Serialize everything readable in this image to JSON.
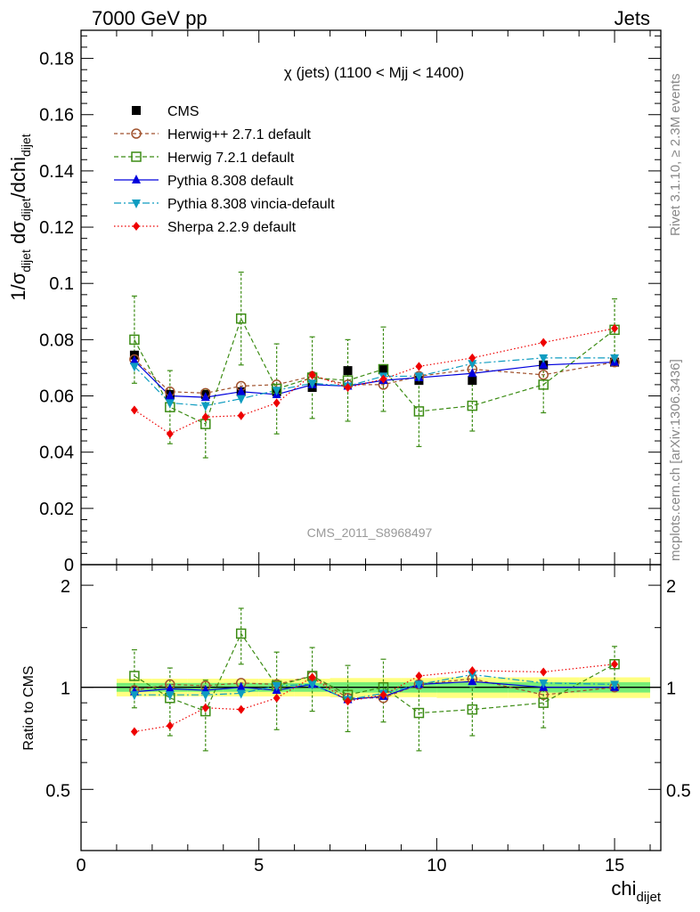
{
  "header": {
    "left": "7000 GeV pp",
    "right": "Jets"
  },
  "side_labels": {
    "rivet": "Rivet 3.1.10, ≥ 2.3M events",
    "mcplots": "mcplots.cern.ch [arXiv:1306.3436]"
  },
  "chart_data": {
    "type": "scatter",
    "title": "χ (jets) (1100 < Mjj < 1400)",
    "watermark": "CMS_2011_S8968497",
    "xlabel": "chi",
    "xlabel_sub": "dijet",
    "ylabel": "1/σdijet dσdijet/dchidijet",
    "ratio_ylabel": "Ratio to CMS",
    "xlim": [
      0,
      16.3
    ],
    "ylim": [
      0,
      0.19
    ],
    "ratio_ylim": [
      0.33,
      2.3
    ],
    "ratio_log_scale": true,
    "x_ticks": [
      "0",
      "5",
      "10",
      "15"
    ],
    "y_ticks": [
      "0",
      "0.02",
      "0.04",
      "0.06",
      "0.08",
      "0.1",
      "0.12",
      "0.14",
      "0.16",
      "0.18"
    ],
    "ratio_ticks": [
      "0.5",
      "1",
      "2"
    ],
    "bins": [
      [
        1,
        2
      ],
      [
        2,
        3
      ],
      [
        3,
        4
      ],
      [
        4,
        5
      ],
      [
        5,
        6
      ],
      [
        6,
        7
      ],
      [
        7,
        8
      ],
      [
        8,
        9
      ],
      [
        9,
        10
      ],
      [
        10,
        12
      ],
      [
        12,
        14
      ],
      [
        14,
        16
      ]
    ],
    "x": [
      1.5,
      2.5,
      3.5,
      4.5,
      5.5,
      6.5,
      7.5,
      8.5,
      9.5,
      11,
      13,
      15
    ],
    "data": {
      "name": "CMS",
      "values": [
        0.0745,
        0.0605,
        0.0605,
        0.0615,
        0.0615,
        0.063,
        0.069,
        0.0695,
        0.0655,
        0.0655,
        0.071,
        0.072
      ],
      "band_inner": [
        0.03,
        0.03,
        0.03,
        0.03,
        0.03,
        0.03,
        0.035,
        0.035,
        0.035,
        0.035,
        0.035,
        0.035
      ],
      "band_outer": [
        0.06,
        0.06,
        0.06,
        0.06,
        0.06,
        0.06,
        0.065,
        0.065,
        0.065,
        0.07,
        0.07,
        0.07
      ]
    },
    "series": [
      {
        "name": "Herwig++ 2.7.1 default",
        "color": "#a0522d",
        "marker": "open-circle",
        "dash": "4,3",
        "values": [
          0.073,
          0.0615,
          0.061,
          0.0635,
          0.064,
          0.067,
          0.064,
          0.064,
          0.067,
          0.0695,
          0.0675,
          0.072
        ],
        "errors": [
          0.001,
          0.001,
          0.001,
          0.001,
          0.001,
          0.001,
          0.001,
          0.001,
          0.001,
          0.001,
          0.001,
          0.001
        ]
      },
      {
        "name": "Herwig 7.2.1 default",
        "color": "#3c8c14",
        "marker": "open-square",
        "dash": "5,3",
        "values": [
          0.08,
          0.056,
          0.05,
          0.0875,
          0.0625,
          0.0665,
          0.0655,
          0.0695,
          0.0545,
          0.0565,
          0.064,
          0.0835
        ],
        "errors": [
          0.0155,
          0.013,
          0.012,
          0.0165,
          0.016,
          0.0145,
          0.0145,
          0.015,
          0.0125,
          0.009,
          0.01,
          0.011
        ]
      },
      {
        "name": "Pythia 8.308 default",
        "color": "#0000dd",
        "marker": "filled-triangle-up",
        "dash": "",
        "values": [
          0.0725,
          0.06,
          0.0595,
          0.0615,
          0.0605,
          0.064,
          0.0635,
          0.0655,
          0.0665,
          0.068,
          0.071,
          0.072
        ],
        "errors": [
          0.001,
          0.001,
          0.001,
          0.001,
          0.001,
          0.001,
          0.001,
          0.001,
          0.001,
          0.001,
          0.001,
          0.001
        ]
      },
      {
        "name": "Pythia 8.308 vincia-default",
        "color": "#0e9cc0",
        "marker": "filled-triangle-down",
        "dash": "8,3,2,3",
        "values": [
          0.0705,
          0.0575,
          0.0565,
          0.059,
          0.062,
          0.0645,
          0.0635,
          0.067,
          0.067,
          0.0715,
          0.0735,
          0.0735
        ],
        "errors": [
          0.001,
          0.001,
          0.001,
          0.001,
          0.001,
          0.001,
          0.001,
          0.001,
          0.001,
          0.001,
          0.001,
          0.001
        ]
      },
      {
        "name": "Sherpa 2.2.9 default",
        "color": "#ee0000",
        "marker": "filled-diamond",
        "dash": "1.5,2.5",
        "values": [
          0.055,
          0.0465,
          0.0525,
          0.053,
          0.0575,
          0.0675,
          0.063,
          0.066,
          0.0705,
          0.0735,
          0.079,
          0.084
        ],
        "errors": [
          0.0015,
          0.0015,
          0.0015,
          0.0015,
          0.0015,
          0.0015,
          0.0015,
          0.0015,
          0.0015,
          0.0015,
          0.0015,
          0.0015
        ]
      }
    ],
    "ratio_values": {
      "Herwig++ 2.7.1 default": [
        0.98,
        1.02,
        1.01,
        1.03,
        1.02,
        1.08,
        0.93,
        0.93,
        1.02,
        1.06,
        0.95,
        1.0
      ],
      "Herwig 7.2.1 default": [
        1.08,
        0.93,
        0.85,
        1.44,
        1.01,
        1.08,
        0.95,
        1.0,
        0.84,
        0.86,
        0.9,
        1.17
      ],
      "Pythia 8.308 default": [
        0.97,
        0.99,
        0.98,
        1.0,
        0.98,
        1.02,
        0.92,
        0.94,
        1.02,
        1.04,
        1.0,
        1.0
      ],
      "Pythia 8.308 vincia-default": [
        0.95,
        0.95,
        0.95,
        0.96,
        1.01,
        1.02,
        0.92,
        0.96,
        1.02,
        1.09,
        1.03,
        1.02
      ],
      "Sherpa 2.2.9 default": [
        0.74,
        0.77,
        0.87,
        0.86,
        0.93,
        1.07,
        0.91,
        0.95,
        1.08,
        1.12,
        1.11,
        1.17
      ]
    },
    "ratio_errors_herwig7": [
      0.21,
      0.21,
      0.2,
      0.27,
      0.26,
      0.23,
      0.21,
      0.21,
      0.19,
      0.14,
      0.14,
      0.15
    ],
    "colors": {
      "band_inner": "#77ee77",
      "band_outer": "#ffff80",
      "data_marker": "#000000"
    },
    "legend_placement": "top-left",
    "grid": false
  }
}
